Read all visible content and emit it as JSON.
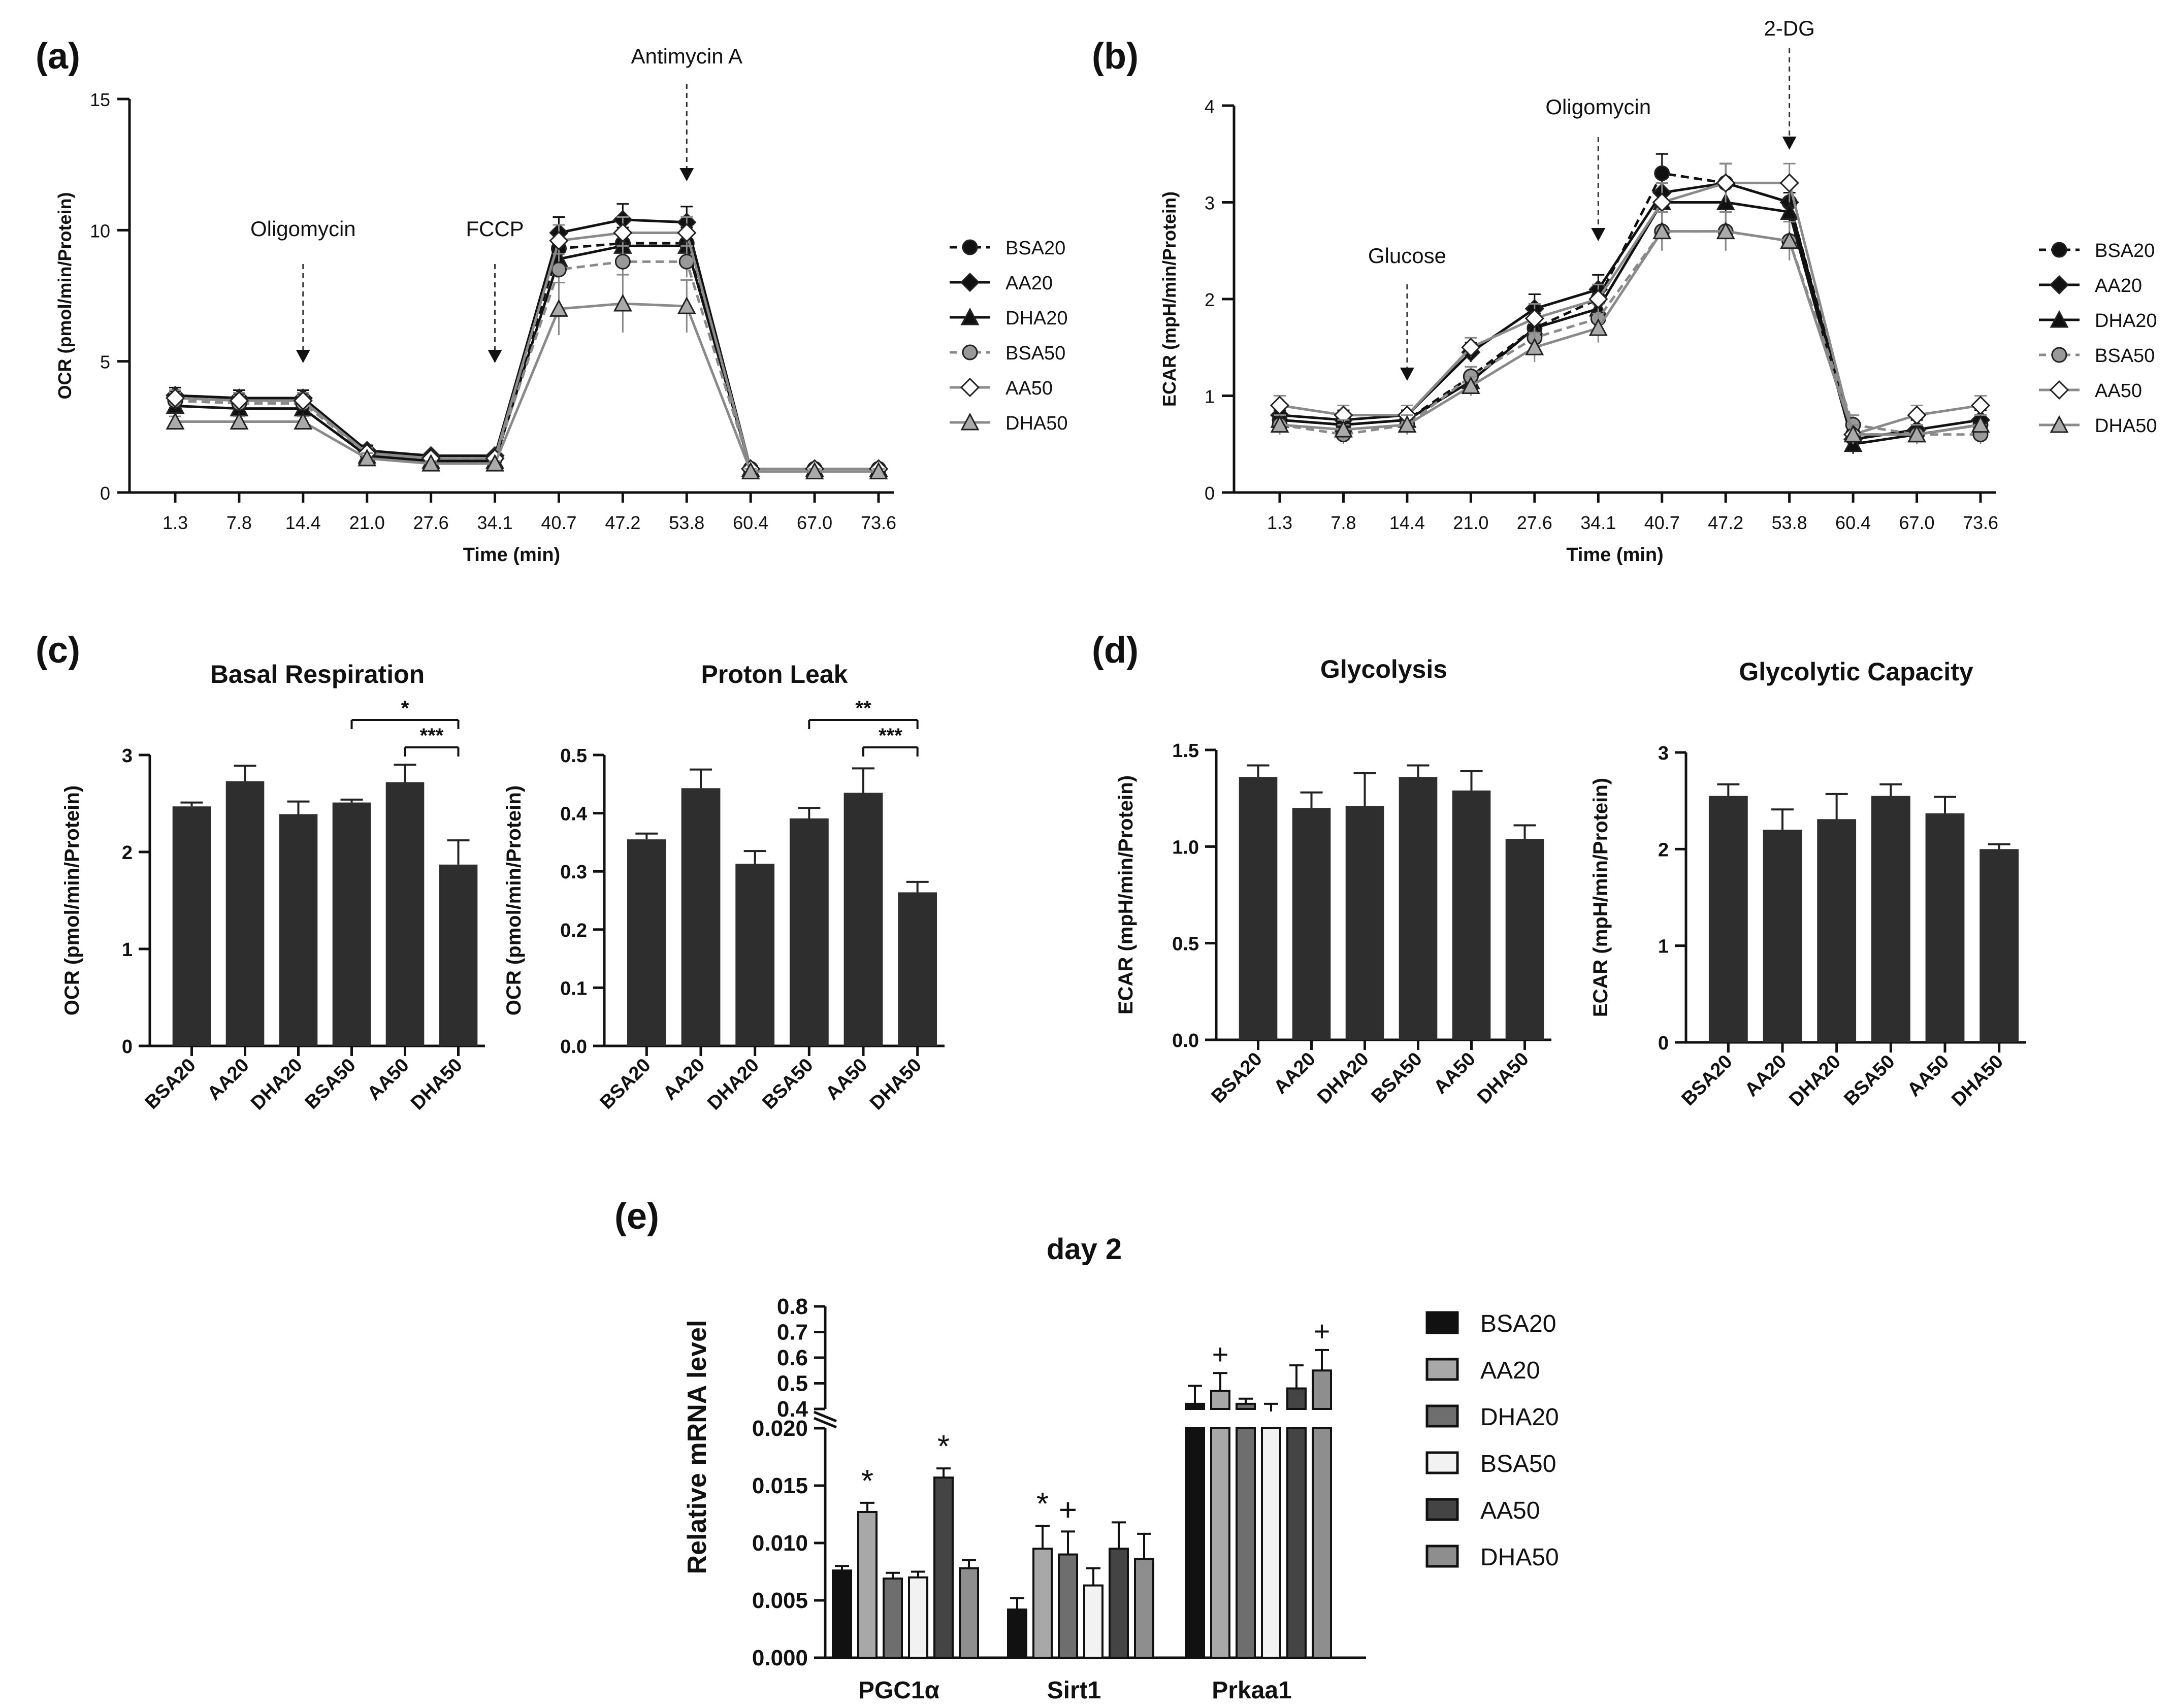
{
  "chart_data": [
    {
      "panel": "(a)",
      "type": "line",
      "ylabel": "OCR (pmol/min/Protein)",
      "xlabel": "Time (min)",
      "x": [
        "1.3",
        "7.8",
        "14.4",
        "21.0",
        "27.6",
        "34.1",
        "40.7",
        "47.2",
        "53.8",
        "60.4",
        "67.0",
        "73.6"
      ],
      "ylim": [
        0,
        15
      ],
      "yticks": [
        "0",
        "5",
        "10",
        "15"
      ],
      "annotations": [
        {
          "label": "Oligomycin",
          "at": "14.4"
        },
        {
          "label": "FCCP",
          "at": "34.1"
        },
        {
          "label": "Antimycin A",
          "at": "53.8"
        }
      ],
      "series": [
        {
          "name": "BSA20",
          "color": "#111111",
          "marker": "circle",
          "dash": true,
          "values": [
            3.5,
            3.4,
            3.4,
            1.5,
            1.3,
            1.3,
            9.3,
            9.5,
            9.5,
            0.9,
            0.9,
            0.9
          ],
          "err": [
            0.3,
            0.3,
            0.3,
            0.2,
            0.1,
            0.1,
            0.6,
            0.6,
            0.6,
            0.1,
            0.1,
            0.1
          ]
        },
        {
          "name": "AA20",
          "color": "#111111",
          "marker": "diamond",
          "dash": false,
          "values": [
            3.7,
            3.6,
            3.6,
            1.6,
            1.4,
            1.4,
            9.9,
            10.4,
            10.3,
            0.9,
            0.9,
            0.9
          ],
          "err": [
            0.3,
            0.3,
            0.3,
            0.2,
            0.1,
            0.1,
            0.6,
            0.6,
            0.6,
            0.1,
            0.1,
            0.1
          ]
        },
        {
          "name": "DHA20",
          "color": "#111111",
          "marker": "triangle",
          "dash": false,
          "values": [
            3.3,
            3.2,
            3.2,
            1.4,
            1.2,
            1.2,
            8.9,
            9.4,
            9.4,
            0.9,
            0.9,
            0.9
          ],
          "err": [
            0.3,
            0.3,
            0.3,
            0.2,
            0.1,
            0.1,
            0.6,
            0.6,
            0.6,
            0.1,
            0.1,
            0.1
          ]
        },
        {
          "name": "BSA50",
          "color": "#8a8a8a",
          "marker": "circle",
          "dash": true,
          "values": [
            3.5,
            3.4,
            3.4,
            1.5,
            1.3,
            1.3,
            8.5,
            8.8,
            8.8,
            0.9,
            0.9,
            0.9
          ],
          "err": [
            0.3,
            0.3,
            0.3,
            0.2,
            0.1,
            0.1,
            0.6,
            0.6,
            0.6,
            0.1,
            0.1,
            0.1
          ]
        },
        {
          "name": "AA50",
          "color": "#8a8a8a",
          "marker": "diamond",
          "dash": false,
          "values": [
            3.6,
            3.5,
            3.5,
            1.5,
            1.3,
            1.3,
            9.6,
            9.9,
            9.9,
            0.9,
            0.9,
            0.9
          ],
          "err": [
            0.3,
            0.3,
            0.3,
            0.2,
            0.1,
            0.1,
            0.6,
            0.6,
            0.6,
            0.1,
            0.1,
            0.1
          ]
        },
        {
          "name": "DHA50",
          "color": "#8a8a8a",
          "marker": "triangle",
          "dash": false,
          "values": [
            2.7,
            2.7,
            2.7,
            1.3,
            1.1,
            1.1,
            7.0,
            7.2,
            7.1,
            0.8,
            0.8,
            0.8
          ],
          "err": [
            0.2,
            0.2,
            0.2,
            0.2,
            0.1,
            0.1,
            1.0,
            1.1,
            1.0,
            0.1,
            0.1,
            0.1
          ]
        }
      ]
    },
    {
      "panel": "(b)",
      "type": "line",
      "ylabel": "ECAR (mpH/min/Protein)",
      "xlabel": "Time (min)",
      "x": [
        "1.3",
        "7.8",
        "14.4",
        "21.0",
        "27.6",
        "34.1",
        "40.7",
        "47.2",
        "53.8",
        "60.4",
        "67.0",
        "73.6"
      ],
      "ylim": [
        0,
        4
      ],
      "yticks": [
        "0",
        "1",
        "2",
        "3",
        "4"
      ],
      "annotations": [
        {
          "label": "Glucose",
          "at": "14.4"
        },
        {
          "label": "Oligomycin",
          "at": "34.1"
        },
        {
          "label": "2-DG",
          "at": "53.8"
        }
      ],
      "series": [
        {
          "name": "BSA20",
          "color": "#111111",
          "marker": "circle",
          "dash": true,
          "values": [
            0.75,
            0.7,
            0.75,
            1.2,
            1.7,
            2.0,
            3.3,
            3.2,
            3.0,
            0.6,
            0.6,
            0.7
          ],
          "err": [
            0.1,
            0.1,
            0.1,
            0.1,
            0.15,
            0.15,
            0.2,
            0.2,
            0.2,
            0.1,
            0.1,
            0.1
          ]
        },
        {
          "name": "AA20",
          "color": "#111111",
          "marker": "diamond",
          "dash": false,
          "values": [
            0.8,
            0.75,
            0.8,
            1.45,
            1.9,
            2.1,
            3.1,
            3.2,
            3.0,
            0.55,
            0.65,
            0.75
          ],
          "err": [
            0.1,
            0.1,
            0.1,
            0.1,
            0.15,
            0.15,
            0.2,
            0.2,
            0.2,
            0.1,
            0.1,
            0.1
          ]
        },
        {
          "name": "DHA20",
          "color": "#111111",
          "marker": "triangle",
          "dash": false,
          "values": [
            0.75,
            0.7,
            0.75,
            1.15,
            1.7,
            1.9,
            3.0,
            3.0,
            2.9,
            0.5,
            0.6,
            0.7
          ],
          "err": [
            0.1,
            0.1,
            0.1,
            0.1,
            0.15,
            0.15,
            0.2,
            0.2,
            0.2,
            0.1,
            0.1,
            0.1
          ]
        },
        {
          "name": "BSA50",
          "color": "#8a8a8a",
          "marker": "circle",
          "dash": true,
          "values": [
            0.7,
            0.6,
            0.7,
            1.2,
            1.6,
            1.8,
            2.7,
            2.7,
            2.6,
            0.7,
            0.6,
            0.6
          ],
          "err": [
            0.1,
            0.1,
            0.1,
            0.1,
            0.15,
            0.15,
            0.2,
            0.2,
            0.2,
            0.1,
            0.1,
            0.1
          ]
        },
        {
          "name": "AA50",
          "color": "#8a8a8a",
          "marker": "diamond",
          "dash": false,
          "values": [
            0.9,
            0.8,
            0.8,
            1.5,
            1.8,
            2.0,
            3.0,
            3.2,
            3.2,
            0.6,
            0.8,
            0.9
          ],
          "err": [
            0.1,
            0.1,
            0.1,
            0.1,
            0.15,
            0.15,
            0.2,
            0.2,
            0.2,
            0.1,
            0.1,
            0.1
          ]
        },
        {
          "name": "DHA50",
          "color": "#8a8a8a",
          "marker": "triangle",
          "dash": false,
          "values": [
            0.7,
            0.65,
            0.7,
            1.1,
            1.5,
            1.7,
            2.7,
            2.7,
            2.6,
            0.6,
            0.6,
            0.7
          ],
          "err": [
            0.1,
            0.1,
            0.1,
            0.1,
            0.15,
            0.15,
            0.2,
            0.2,
            0.2,
            0.1,
            0.1,
            0.1
          ]
        }
      ]
    },
    {
      "panel": "(c)",
      "type": "bar",
      "title": "Basal Respiration",
      "ylabel": "OCR (pmol/min/Protein)",
      "categories": [
        "BSA20",
        "AA20",
        "DHA20",
        "BSA50",
        "AA50",
        "DHA50"
      ],
      "values": [
        2.47,
        2.73,
        2.39,
        2.51,
        2.72,
        1.87
      ],
      "err": [
        0.04,
        0.16,
        0.13,
        0.03,
        0.18,
        0.25
      ],
      "ylim": [
        0,
        3
      ],
      "yticks": [
        "0",
        "1",
        "2",
        "3"
      ],
      "significance": [
        {
          "from": "BSA50",
          "to": "DHA50",
          "label": "*"
        },
        {
          "from": "AA50",
          "to": "DHA50",
          "label": "***"
        }
      ]
    },
    {
      "panel": "(c)",
      "type": "bar",
      "title": "Proton Leak",
      "ylabel": "OCR (pmol/min/Protein)",
      "categories": [
        "BSA20",
        "AA20",
        "DHA20",
        "BSA50",
        "AA50",
        "DHA50"
      ],
      "values": [
        0.355,
        0.443,
        0.313,
        0.391,
        0.435,
        0.264
      ],
      "err": [
        0.01,
        0.032,
        0.022,
        0.018,
        0.042,
        0.018
      ],
      "ylim": [
        0,
        0.5
      ],
      "yticks": [
        "0.0",
        "0.1",
        "0.2",
        "0.3",
        "0.4",
        "0.5"
      ],
      "significance": [
        {
          "from": "BSA50",
          "to": "DHA50",
          "label": "**"
        },
        {
          "from": "AA50",
          "to": "DHA50",
          "label": "***"
        }
      ]
    },
    {
      "panel": "(d)",
      "type": "bar",
      "title": "Glycolysis",
      "ylabel": "ECAR (mpH/min/Protein)",
      "categories": [
        "BSA20",
        "AA20",
        "DHA20",
        "BSA50",
        "AA50",
        "DHA50"
      ],
      "values": [
        1.36,
        1.2,
        1.21,
        1.36,
        1.29,
        1.04
      ],
      "err": [
        0.06,
        0.08,
        0.17,
        0.06,
        0.1,
        0.07
      ],
      "ylim": [
        0,
        1.5
      ],
      "yticks": [
        "0.0",
        "0.5",
        "1.0",
        "1.5"
      ],
      "significance": []
    },
    {
      "panel": "(d)",
      "type": "bar",
      "title": "Glycolytic Capacity",
      "ylabel": "ECAR (mpH/min/Protein)",
      "categories": [
        "BSA20",
        "AA20",
        "DHA20",
        "BSA50",
        "AA50",
        "DHA50"
      ],
      "values": [
        2.55,
        2.2,
        2.31,
        2.55,
        2.37,
        2.0
      ],
      "err": [
        0.12,
        0.21,
        0.26,
        0.12,
        0.17,
        0.05
      ],
      "ylim": [
        0,
        3
      ],
      "yticks": [
        "0",
        "1",
        "2",
        "3"
      ],
      "significance": []
    },
    {
      "panel": "(e)",
      "type": "bar",
      "title": "day 2",
      "ylabel": "Relative mRNA level",
      "categories": [
        "PGC1α",
        "Sirt1",
        "Prkaa1"
      ],
      "y_axis_break": {
        "lower": [
          0,
          0.02
        ],
        "upper": [
          0.4,
          0.8
        ]
      },
      "lower_yticks": [
        "0.000",
        "0.005",
        "0.010",
        "0.015",
        "0.020"
      ],
      "upper_yticks": [
        "0.4",
        "0.5",
        "0.6",
        "0.7",
        "0.8"
      ],
      "series": [
        {
          "name": "BSA20",
          "fill": "#111111",
          "values": [
            0.0076,
            0.0042,
            0.42
          ],
          "err": [
            0.0004,
            0.001,
            0.07
          ],
          "marks": [
            "",
            "",
            ""
          ]
        },
        {
          "name": "AA20",
          "fill": "#a8a8a8",
          "values": [
            0.0127,
            0.0095,
            0.47
          ],
          "err": [
            0.0008,
            0.002,
            0.07
          ],
          "marks": [
            "*",
            "*",
            "+"
          ]
        },
        {
          "name": "DHA20",
          "fill": "#6e6e6e",
          "values": [
            0.0069,
            0.009,
            0.42
          ],
          "err": [
            0.0005,
            0.002,
            0.02
          ],
          "marks": [
            "",
            "+",
            ""
          ]
        },
        {
          "name": "BSA50",
          "fill": "#f2f2f2",
          "values": [
            0.007,
            0.0063,
            0.39
          ],
          "err": [
            0.0005,
            0.0015,
            0.03
          ],
          "marks": [
            "",
            "",
            ""
          ]
        },
        {
          "name": "AA50",
          "fill": "#444444",
          "values": [
            0.0157,
            0.0095,
            0.48
          ],
          "err": [
            0.0008,
            0.0023,
            0.09
          ],
          "marks": [
            "*",
            "",
            ""
          ]
        },
        {
          "name": "DHA50",
          "fill": "#8e8e8e",
          "values": [
            0.0078,
            0.0086,
            0.55
          ],
          "err": [
            0.0007,
            0.0022,
            0.08
          ],
          "marks": [
            "",
            "",
            "+"
          ]
        }
      ]
    }
  ]
}
